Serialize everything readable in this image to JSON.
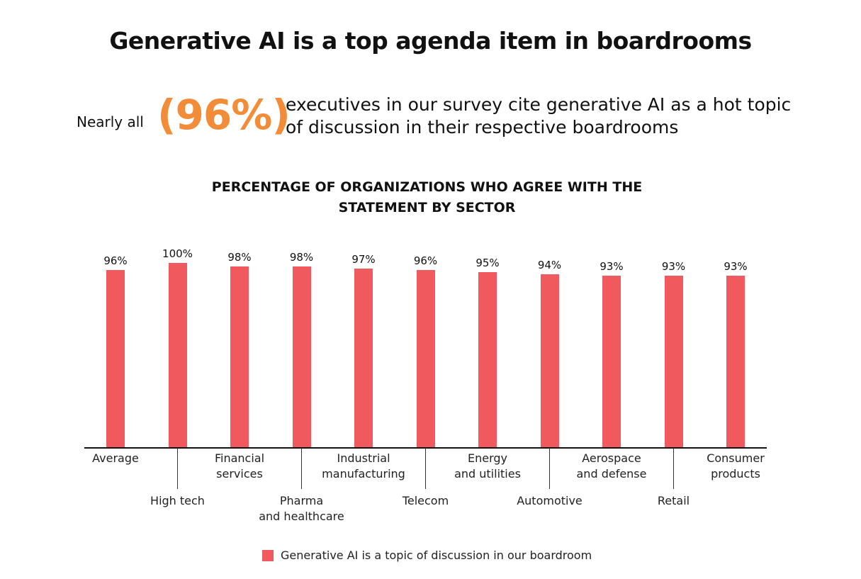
{
  "header": {
    "title": "Generative AI is a top agenda item in boardrooms",
    "lead": "Nearly all",
    "highlight": "(96%)",
    "description": "executives in our survey cite generative AI as a hot topic\nof discussion in their respective boardrooms"
  },
  "colors": {
    "bar": "#F05A5F",
    "highlight": "#F28C38"
  },
  "chart_data": {
    "type": "bar",
    "title": "PERCENTAGE OF ORGANIZATIONS WHO AGREE WITH THE\nSTATEMENT BY SECTOR",
    "categories": [
      "Average",
      "High tech",
      "Financial\nservices",
      "Pharma\nand healthcare",
      "Industrial\nmanufacturing",
      "Telecom",
      "Energy\nand utilities",
      "Automotive",
      "Aerospace\nand defense",
      "Retail",
      "Consumer\nproducts"
    ],
    "values": [
      96,
      100,
      98,
      98,
      97,
      96,
      95,
      94,
      93,
      93,
      93
    ],
    "value_labels": [
      "96%",
      "100%",
      "98%",
      "98%",
      "97%",
      "96%",
      "95%",
      "94%",
      "93%",
      "93%",
      "93%"
    ],
    "ylim": [
      0,
      100
    ],
    "grid": false,
    "legend": {
      "position": "bottom",
      "entries": [
        "Generative AI is a topic of discussion in our boardroom"
      ]
    }
  }
}
